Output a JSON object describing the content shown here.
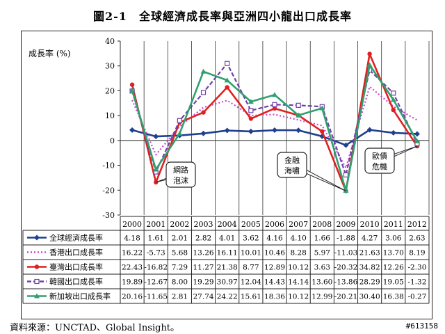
{
  "title": "圖2-1　全球經濟成長率與亞洲四小龍出口成長率",
  "source": "資料來源：UNCTAD、Global Insight。",
  "image_id": "#613158",
  "chart_data": {
    "type": "line",
    "title": "圖2-1　全球經濟成長率與亞洲四小龍出口成長率",
    "ylabel": "成長率 (%)",
    "xlabel": "",
    "ylim": [
      -30,
      40
    ],
    "yticks": [
      -30,
      -20,
      -10,
      0,
      10,
      20,
      30,
      40
    ],
    "x": [
      "2000",
      "2001",
      "2002",
      "2003",
      "2004",
      "2005",
      "2006",
      "2007",
      "2008",
      "2009",
      "2010",
      "2011",
      "2012"
    ],
    "legend_placement": "data-table-left",
    "grid": false,
    "series": [
      {
        "name": "全球經濟成長率",
        "color": "#1f3f8f",
        "dash": "solid",
        "marker": "diamond",
        "values": [
          "4.18",
          "1.61",
          "2.01",
          "2.82",
          "4.01",
          "3.62",
          "4.16",
          "4.10",
          "1.66",
          "-1.88",
          "4.27",
          "3.06",
          "2.63"
        ]
      },
      {
        "name": "香港出口成長率",
        "color": "#cc44cc",
        "dash": "dot",
        "marker": "none",
        "values": [
          "16.22",
          "-5.73",
          "5.68",
          "13.26",
          "16.11",
          "10.01",
          "10.46",
          "8.28",
          "5.97",
          "-11.03",
          "21.63",
          "13.70",
          "8.19"
        ]
      },
      {
        "name": "臺灣出口成長率",
        "color": "#e02020",
        "dash": "solid",
        "marker": "circle",
        "values": [
          "22.43",
          "-16.82",
          "7.29",
          "11.27",
          "21.38",
          "8.77",
          "12.89",
          "10.12",
          "3.63",
          "-20.32",
          "34.82",
          "12.26",
          "-2.30"
        ]
      },
      {
        "name": "韓國出口成長率",
        "color": "#7040a8",
        "dash": "dash",
        "marker": "square",
        "values": [
          "19.89",
          "-12.67",
          "8.00",
          "19.29",
          "30.97",
          "12.04",
          "14.43",
          "14.14",
          "13.60",
          "-13.86",
          "28.29",
          "19.05",
          "-1.32"
        ]
      },
      {
        "name": "新加坡出口成長率",
        "color": "#30a070",
        "dash": "solid",
        "marker": "triangle",
        "values": [
          "20.16",
          "-11.65",
          "2.81",
          "27.74",
          "24.22",
          "15.61",
          "18.36",
          "10.12",
          "12.99",
          "-20.21",
          "30.40",
          "16.38",
          "-0.27"
        ]
      }
    ],
    "annotations": [
      {
        "text": "網路\n泡沫",
        "year": "2001",
        "value": "-16.82"
      },
      {
        "text": "金融\n海嘯",
        "year": "2009",
        "value": "-20.32"
      },
      {
        "text": "歐債\n危機",
        "year": "2012",
        "value": "-2.30"
      }
    ]
  }
}
